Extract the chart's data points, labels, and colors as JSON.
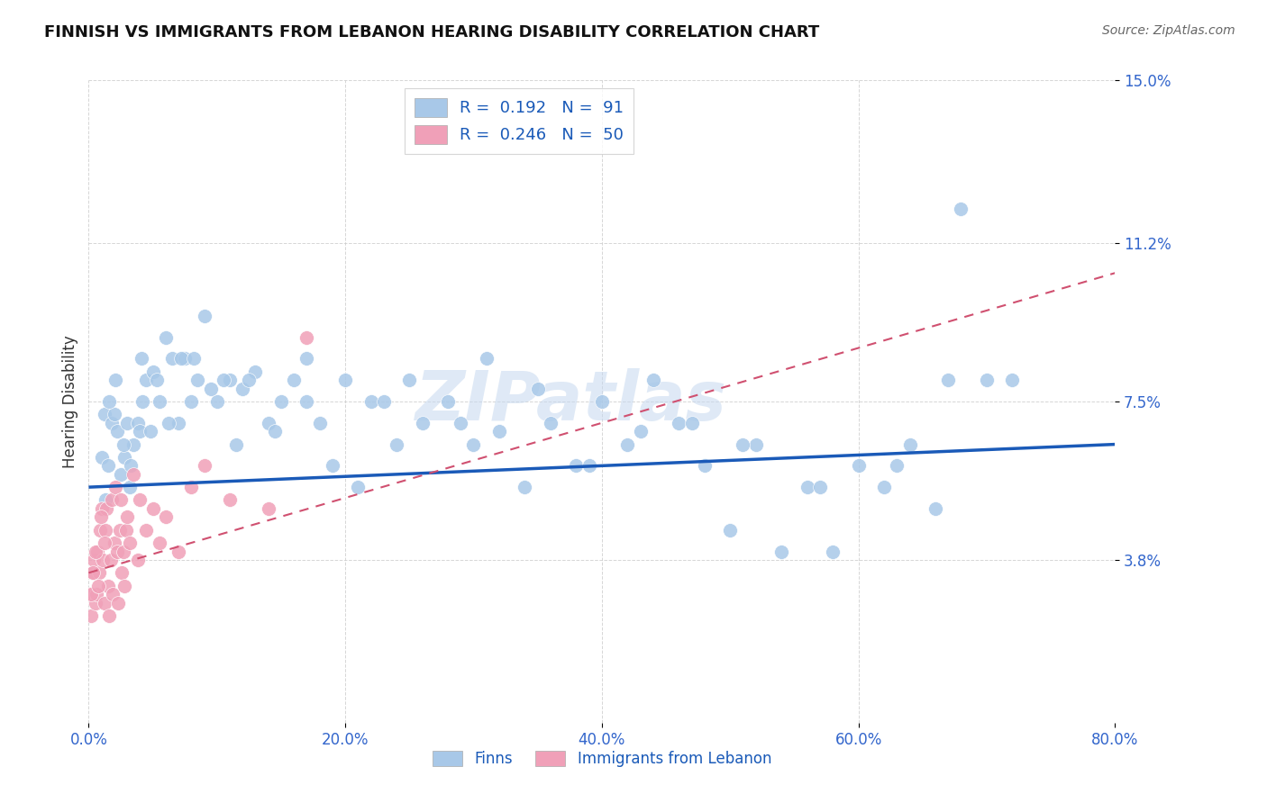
{
  "title": "FINNISH VS IMMIGRANTS FROM LEBANON HEARING DISABILITY CORRELATION CHART",
  "source": "Source: ZipAtlas.com",
  "ylabel": "Hearing Disability",
  "R_finns": 0.192,
  "N_finns": 91,
  "R_lebanon": 0.246,
  "N_lebanon": 50,
  "color_finns": "#a8c8e8",
  "color_lebanon": "#f0a0b8",
  "line_color_finns": "#1a5ab8",
  "line_color_lebanon": "#d05070",
  "xmin": 0.0,
  "xmax": 80.0,
  "ymin": 0.0,
  "ymax": 15.0,
  "yticks": [
    3.8,
    7.5,
    11.2,
    15.0
  ],
  "xticks": [
    0.0,
    20.0,
    40.0,
    60.0,
    80.0
  ],
  "watermark": "ZIPatlas",
  "title_fontsize": 13,
  "tick_label_color": "#3366cc",
  "background_color": "#ffffff",
  "finns_line_start_y": 5.5,
  "finns_line_end_y": 6.5,
  "lebanon_line_start_y": 3.5,
  "lebanon_line_end_y": 10.5,
  "finns_x": [
    1.0,
    1.2,
    1.5,
    1.8,
    2.0,
    2.2,
    2.5,
    2.8,
    3.0,
    3.2,
    3.5,
    3.8,
    4.0,
    4.2,
    4.5,
    5.0,
    5.5,
    6.0,
    6.5,
    7.0,
    7.5,
    8.0,
    8.5,
    9.0,
    10.0,
    11.0,
    12.0,
    13.0,
    14.0,
    15.0,
    16.0,
    17.0,
    18.0,
    20.0,
    22.0,
    24.0,
    26.0,
    28.0,
    30.0,
    32.0,
    34.0,
    36.0,
    38.0,
    40.0,
    42.0,
    44.0,
    46.0,
    48.0,
    50.0,
    52.0,
    54.0,
    56.0,
    58.0,
    60.0,
    62.0,
    64.0,
    66.0,
    68.0,
    70.0,
    72.0,
    1.3,
    1.6,
    2.1,
    2.7,
    3.3,
    4.1,
    4.8,
    5.3,
    6.2,
    7.2,
    8.2,
    9.5,
    10.5,
    11.5,
    12.5,
    14.5,
    17.0,
    19.0,
    21.0,
    23.0,
    25.0,
    29.0,
    31.0,
    35.0,
    39.0,
    43.0,
    47.0,
    51.0,
    57.0,
    63.0,
    67.0
  ],
  "finns_y": [
    6.2,
    7.2,
    6.0,
    7.0,
    7.2,
    6.8,
    5.8,
    6.2,
    7.0,
    5.5,
    6.5,
    7.0,
    6.8,
    7.5,
    8.0,
    8.2,
    7.5,
    9.0,
    8.5,
    7.0,
    8.5,
    7.5,
    8.0,
    9.5,
    7.5,
    8.0,
    7.8,
    8.2,
    7.0,
    7.5,
    8.0,
    8.5,
    7.0,
    8.0,
    7.5,
    6.5,
    7.0,
    7.5,
    6.5,
    6.8,
    5.5,
    7.0,
    6.0,
    7.5,
    6.5,
    8.0,
    7.0,
    6.0,
    4.5,
    6.5,
    4.0,
    5.5,
    4.0,
    6.0,
    5.5,
    6.5,
    5.0,
    12.0,
    8.0,
    8.0,
    5.2,
    7.5,
    8.0,
    6.5,
    6.0,
    8.5,
    6.8,
    8.0,
    7.0,
    8.5,
    8.5,
    7.8,
    8.0,
    6.5,
    8.0,
    6.8,
    7.5,
    6.0,
    5.5,
    7.5,
    8.0,
    7.0,
    8.5,
    7.8,
    6.0,
    6.8,
    7.0,
    6.5,
    5.5,
    6.0,
    8.0
  ],
  "lebanon_x": [
    0.1,
    0.2,
    0.3,
    0.4,
    0.5,
    0.6,
    0.7,
    0.8,
    0.9,
    1.0,
    1.1,
    1.2,
    1.3,
    1.4,
    1.5,
    1.6,
    1.7,
    1.8,
    1.9,
    2.0,
    2.1,
    2.2,
    2.3,
    2.4,
    2.5,
    2.6,
    2.7,
    2.8,
    2.9,
    3.0,
    3.2,
    3.5,
    3.8,
    4.0,
    4.5,
    5.0,
    5.5,
    6.0,
    7.0,
    8.0,
    9.0,
    11.0,
    14.0,
    17.0,
    0.15,
    0.35,
    0.55,
    0.75,
    0.95,
    1.25
  ],
  "lebanon_y": [
    3.0,
    2.5,
    3.5,
    3.8,
    2.8,
    3.0,
    4.0,
    3.5,
    4.5,
    5.0,
    3.8,
    2.8,
    4.5,
    5.0,
    3.2,
    2.5,
    3.8,
    5.2,
    3.0,
    4.2,
    5.5,
    4.0,
    2.8,
    4.5,
    5.2,
    3.5,
    4.0,
    3.2,
    4.5,
    4.8,
    4.2,
    5.8,
    3.8,
    5.2,
    4.5,
    5.0,
    4.2,
    4.8,
    4.0,
    5.5,
    6.0,
    5.2,
    5.0,
    9.0,
    3.0,
    3.5,
    4.0,
    3.2,
    4.8,
    4.2
  ]
}
